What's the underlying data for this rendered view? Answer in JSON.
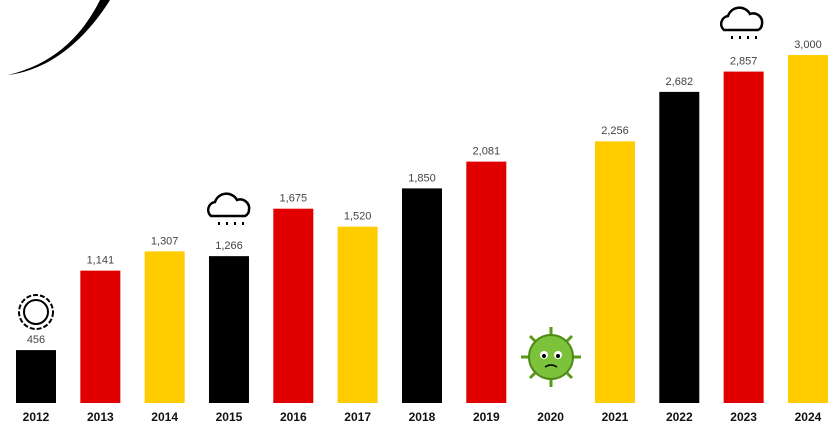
{
  "chart_data": {
    "type": "bar",
    "categories": [
      "2012",
      "2013",
      "2014",
      "2015",
      "2016",
      "2017",
      "2018",
      "2019",
      "2020",
      "2021",
      "2022",
      "2023",
      "2024"
    ],
    "values": [
      456,
      1141,
      1307,
      1266,
      1675,
      1520,
      1850,
      2081,
      null,
      2256,
      2682,
      2857,
      3000
    ],
    "value_labels": [
      "456",
      "1,141",
      "1,307",
      "1,266",
      "1,675",
      "1,520",
      "1,850",
      "2,081",
      null,
      "2,256",
      "2,682",
      "2,857",
      "3,000"
    ],
    "colors": [
      "#000000",
      "#e10000",
      "#ffcc00",
      "#000000",
      "#e10000",
      "#ffcc00",
      "#000000",
      "#e10000",
      "#000000",
      "#ffcc00",
      "#000000",
      "#e10000",
      "#ffcc00"
    ]
  }
}
